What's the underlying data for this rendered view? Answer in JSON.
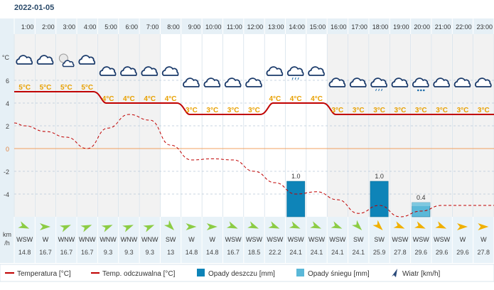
{
  "header": {
    "date": "2022-01-05"
  },
  "colors": {
    "temperature": "#c00000",
    "rain": "#0e84b8",
    "snow": "#5ab8d8",
    "wind_arrow_strong": "#f0b000",
    "wind_arrow_light": "#8ccc44",
    "day_bg": "#ffffff",
    "night_bg": "#f2f2f2",
    "axis_bg": "#e6f0f6"
  },
  "chart_data": {
    "type": "line",
    "x": [
      "1:00",
      "2:00",
      "3:00",
      "4:00",
      "5:00",
      "6:00",
      "7:00",
      "8:00",
      "9:00",
      "10:00",
      "11:00",
      "12:00",
      "13:00",
      "14:00",
      "15:00",
      "16:00",
      "17:00",
      "18:00",
      "19:00",
      "20:00",
      "21:00",
      "22:00",
      "23:00"
    ],
    "y_unit_label": "°C",
    "y_ticks": [
      6,
      4,
      2,
      0,
      -2,
      -4
    ],
    "ylim": [
      -6,
      8
    ],
    "zero_line": 0,
    "series": [
      {
        "key": "temperature",
        "name": "Temperatura [°C]",
        "style": "solid",
        "values": [
          5,
          5,
          5,
          5,
          4,
          4,
          4,
          4,
          3,
          3,
          3,
          3,
          4,
          4,
          4,
          3,
          3,
          3,
          3,
          3,
          3,
          3,
          3
        ]
      },
      {
        "key": "feels_like",
        "name": "Temp. odczuwalna [°C]",
        "style": "dashed",
        "values": [
          2,
          1.5,
          1,
          0,
          1.8,
          3,
          2.5,
          0.3,
          -1,
          -0.9,
          -1,
          -2,
          -3,
          -4,
          -3.8,
          -4.5,
          -5.7,
          -5,
          -6,
          -5.5,
          -5,
          -5,
          -5
        ]
      }
    ],
    "temp_labels": [
      "5°C",
      "5°C",
      "5°C",
      "5°C",
      "4°C",
      "4°C",
      "4°C",
      "4°C",
      "3°C",
      "3°C",
      "3°C",
      "3°C",
      "4°C",
      "4°C",
      "4°C",
      "3°C",
      "3°C",
      "3°C",
      "3°C",
      "3°C",
      "3°C",
      "3°C",
      "3°C"
    ],
    "weather_icons": [
      "cloud-icon",
      "cloud-icon",
      "moon-cloud-icon",
      "cloud-icon",
      "cloud-icon",
      "cloud-icon",
      "cloud-icon",
      "cloud-icon",
      "cloud-icon",
      "cloud-icon",
      "cloud-icon",
      "cloud-icon",
      "cloud-icon",
      "rain-cloud-icon",
      "cloud-icon",
      "cloud-icon",
      "cloud-icon",
      "rain-cloud-icon",
      "cloud-icon",
      "snow-cloud-icon",
      "cloud-icon",
      "cloud-icon",
      "cloud-icon"
    ],
    "precipitation": [
      {
        "hour": "14:00",
        "type": "rain",
        "value": 1.0,
        "label": "1.0"
      },
      {
        "hour": "18:00",
        "type": "rain",
        "value": 1.0,
        "label": "1.0"
      },
      {
        "hour": "20:00",
        "type": "snow",
        "value": 0.4,
        "label": "0.4"
      }
    ],
    "wind": {
      "unit_label_1": "km",
      "unit_label_2": "/h",
      "directions": [
        "WSW",
        "W",
        "WNW",
        "WNW",
        "WNW",
        "WNW",
        "WNW",
        "SW",
        "W",
        "W",
        "WSW",
        "WSW",
        "WSW",
        "WSW",
        "WSW",
        "WSW",
        "SW",
        "SW",
        "WSW",
        "WSW",
        "WSW",
        "W",
        "W"
      ],
      "speeds": [
        "14.8",
        "16.7",
        "16.7",
        "16.7",
        "9.3",
        "9.3",
        "9.3",
        "13",
        "14.8",
        "14.8",
        "16.7",
        "18.5",
        "22.2",
        "24.1",
        "24.1",
        "24.1",
        "24.1",
        "25.9",
        "27.8",
        "29.6",
        "29.6",
        "29.6",
        "27.8"
      ]
    },
    "night_hours": [
      "1:00",
      "2:00",
      "3:00",
      "4:00",
      "5:00",
      "6:00",
      "7:00",
      "16:00",
      "17:00",
      "18:00",
      "19:00",
      "20:00",
      "21:00",
      "22:00",
      "23:00"
    ],
    "legend": {
      "temperature": "Temperatura [°C]",
      "feels_like": "Temp. odczuwalna [°C]",
      "rain": "Opady deszczu [mm]",
      "snow": "Opady śniegu [mm]",
      "wind": "Wiatr [km/h]"
    },
    "legend_position": "bottom"
  }
}
